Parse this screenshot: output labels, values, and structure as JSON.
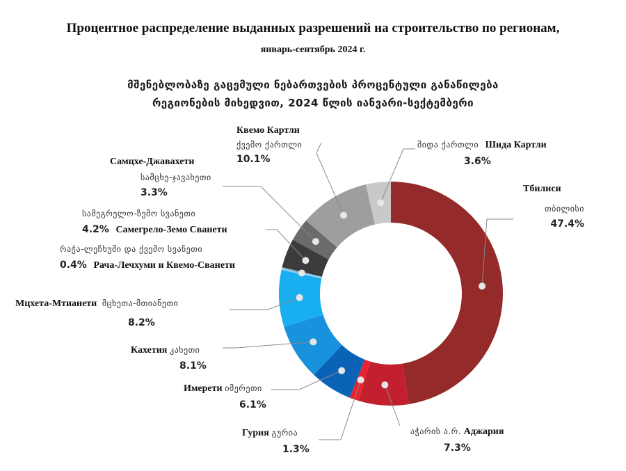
{
  "header": {
    "title_ru": "Процентное распределение выданных разрешений на строительство по регионам,",
    "subtitle_ru": "январь-сентябрь 2024 г.",
    "title_ka_line1": "მშენებლობაზე გაცემული ნებართვების პროცენტული განაწილება",
    "title_ka_line2": "რეგიონების მიხედვით, 2024 წლის იანვარი-სექტემბერი"
  },
  "chart_data": {
    "type": "pie",
    "title": "Процентное распределение выданных разрешений на строительство по регионам, январь-сентябрь 2024 г.",
    "unit": "%",
    "slices": [
      {
        "name_ru": "Тбилиси",
        "name_ka": "თბილისი",
        "value": 47.4,
        "pct_label": "47.4%",
        "color": "#942A2A"
      },
      {
        "name_ru": "Аджария",
        "name_ka": "აჭარის ა.რ.",
        "value": 7.3,
        "pct_label": "7.3%",
        "color": "#C2202F"
      },
      {
        "name_ru": "Гурия",
        "name_ka": "გურია",
        "value": 1.3,
        "pct_label": "1.3%",
        "color": "#E8232F"
      },
      {
        "name_ru": "Имерети",
        "name_ka": "იმერეთი",
        "value": 6.1,
        "pct_label": "6.1%",
        "color": "#0B63B8"
      },
      {
        "name_ru": "Кахетия",
        "name_ka": "კახეთი",
        "value": 8.1,
        "pct_label": "8.1%",
        "color": "#1892DC"
      },
      {
        "name_ru": "Мцхета-Мтианети",
        "name_ka": "მცხეთა-მთიანეთი",
        "value": 8.2,
        "pct_label": "8.2%",
        "color": "#19AEF0"
      },
      {
        "name_ru": "Рача-Лечхуми и Квемо-Сванети",
        "name_ka": "რაჭა-ლეჩხუმი და ქვემო სვანეთი",
        "value": 0.4,
        "pct_label": "0.4%",
        "color": "#8FD2F2"
      },
      {
        "name_ru": "Самегрело-Земо Сванети",
        "name_ka": "სამეგრელო-ზემო სვანეთი",
        "value": 4.2,
        "pct_label": "4.2%",
        "color": "#3B3B3B"
      },
      {
        "name_ru": "Самцхе-Джавахети",
        "name_ka": "სამცხე-ჯავახეთი",
        "value": 3.3,
        "pct_label": "3.3%",
        "color": "#6B6B6B"
      },
      {
        "name_ru": "Квемо Картли",
        "name_ka": "ქვემო ქართლი",
        "value": 10.1,
        "pct_label": "10.1%",
        "color": "#9E9E9E"
      },
      {
        "name_ru": "Шида Картли",
        "name_ka": "შიდა ქართლი",
        "value": 3.6,
        "pct_label": "3.6%",
        "color": "#C9C9C9"
      }
    ]
  }
}
